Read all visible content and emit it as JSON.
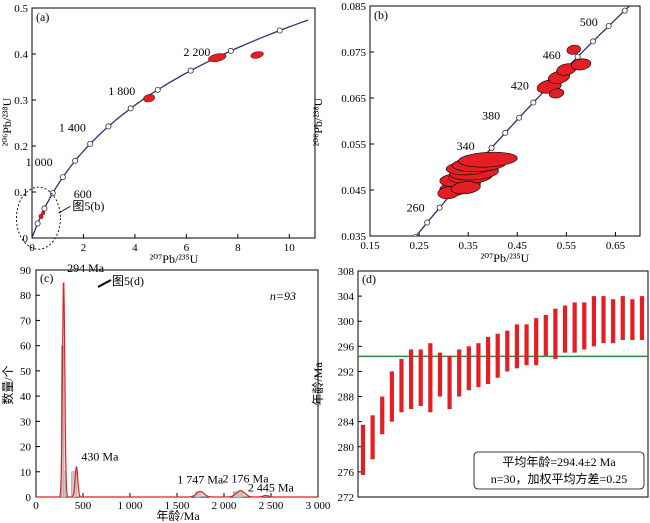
{
  "colors": {
    "curve": "#2b2f73",
    "ellipse": "#e31e24",
    "ellipse_stroke": "#7a0d10",
    "hist_fill": "#c8c8c8",
    "hist_line": "#e31e24",
    "mean_line": "#2e8b3e",
    "bar": "#e31e24"
  },
  "chart_data": [
    {
      "type": "scatter",
      "panel": "(a)",
      "xlabel": "²⁰⁷Pb/²³⁵U",
      "ylabel": "²⁰⁶Pb/²³⁸U",
      "xlim": [
        0,
        11
      ],
      "ylim": [
        0,
        0.5
      ],
      "xticks": [
        "0",
        "2",
        "4",
        "6",
        "8",
        "10"
      ],
      "yticks": [
        "0",
        "0.1",
        "0.2",
        "0.3",
        "0.4",
        "0.5"
      ],
      "concordia_ages": [
        "600",
        "1 000",
        "1 400",
        "1 800",
        "2 200"
      ],
      "concordia_label_pos": [
        [
          600,
          30
        ],
        [
          1000,
          -36
        ],
        [
          1400,
          -36
        ],
        [
          1800,
          -36
        ],
        [
          2200,
          -34
        ]
      ],
      "inset_label": "图5(b)",
      "points": [
        {
          "x": 0.35,
          "y": 0.047,
          "rx": 0.08,
          "ry": 0.005
        },
        {
          "x": 0.44,
          "y": 0.055,
          "rx": 0.06,
          "ry": 0.004
        },
        {
          "x": 4.55,
          "y": 0.304,
          "rx": 0.22,
          "ry": 0.008
        },
        {
          "x": 7.2,
          "y": 0.392,
          "rx": 0.35,
          "ry": 0.008
        },
        {
          "x": 8.75,
          "y": 0.398,
          "rx": 0.25,
          "ry": 0.007
        }
      ]
    },
    {
      "type": "scatter",
      "panel": "(b)",
      "xlabel": "²⁰⁷Pb/²³⁵U",
      "ylabel": "²⁰⁶Pb/²³⁸U",
      "xlim": [
        0.15,
        0.7
      ],
      "ylim": [
        0.035,
        0.085
      ],
      "xticks": [
        "0.15",
        "0.25",
        "0.35",
        "0.45",
        "0.55",
        "0.65"
      ],
      "yticks": [
        "0.035",
        "0.045",
        "0.055",
        "0.065",
        "0.075",
        "0.085"
      ],
      "concordia_ages": [
        "260",
        "340",
        "380",
        "420",
        "460",
        "500"
      ],
      "points": [
        {
          "x": 0.32,
          "y": 0.0452,
          "rx": 0.028,
          "ry": 0.0015,
          "rot": -5
        },
        {
          "x": 0.34,
          "y": 0.0462,
          "rx": 0.035,
          "ry": 0.0016,
          "rot": -5
        },
        {
          "x": 0.33,
          "y": 0.0472,
          "rx": 0.038,
          "ry": 0.0015,
          "rot": -4
        },
        {
          "x": 0.355,
          "y": 0.048,
          "rx": 0.045,
          "ry": 0.0016,
          "rot": -4
        },
        {
          "x": 0.362,
          "y": 0.0488,
          "rx": 0.05,
          "ry": 0.0016,
          "rot": -4
        },
        {
          "x": 0.35,
          "y": 0.0498,
          "rx": 0.045,
          "ry": 0.0015,
          "rot": -3
        },
        {
          "x": 0.372,
          "y": 0.0506,
          "rx": 0.055,
          "ry": 0.0016,
          "rot": -3
        },
        {
          "x": 0.39,
          "y": 0.0516,
          "rx": 0.06,
          "ry": 0.0016,
          "rot": -3
        },
        {
          "x": 0.31,
          "y": 0.0444,
          "rx": 0.022,
          "ry": 0.0013,
          "rot": -6
        },
        {
          "x": 0.345,
          "y": 0.0455,
          "rx": 0.03,
          "ry": 0.0013,
          "rot": -6
        },
        {
          "x": 0.515,
          "y": 0.0675,
          "rx": 0.025,
          "ry": 0.0014,
          "rot": -12
        },
        {
          "x": 0.53,
          "y": 0.066,
          "rx": 0.015,
          "ry": 0.001,
          "rot": -10
        },
        {
          "x": 0.535,
          "y": 0.0695,
          "rx": 0.022,
          "ry": 0.0013,
          "rot": -12
        },
        {
          "x": 0.55,
          "y": 0.0712,
          "rx": 0.02,
          "ry": 0.0012,
          "rot": -12
        },
        {
          "x": 0.58,
          "y": 0.0723,
          "rx": 0.02,
          "ry": 0.0012,
          "rot": -8
        },
        {
          "x": 0.565,
          "y": 0.0755,
          "rx": 0.014,
          "ry": 0.001,
          "rot": -10
        }
      ]
    },
    {
      "type": "area",
      "panel": "(c)",
      "xlabel": "年龄/Ma",
      "ylabel": "数量/个",
      "xlim": [
        0,
        3000
      ],
      "ylim": [
        0,
        90
      ],
      "xticks": [
        "0",
        "500",
        "1 000",
        "1 500",
        "2 000",
        "2 500",
        "3 000"
      ],
      "yticks": [
        "0",
        "10",
        "20",
        "30",
        "40",
        "50",
        "60",
        "70",
        "80",
        "90"
      ],
      "n_label": "n=93",
      "inset_label": "图5(d)",
      "peaks": [
        {
          "label": "294 Ma",
          "age": 294,
          "height": 86,
          "width": 12
        },
        {
          "label": "430 Ma",
          "age": 430,
          "height": 12,
          "width": 14
        },
        {
          "label": "1 747 Ma",
          "age": 1747,
          "height": 2.2,
          "width": 40
        },
        {
          "label": "2 176 Ma",
          "age": 2176,
          "height": 2.5,
          "width": 45
        },
        {
          "label": "2 445 Ma",
          "age": 2445,
          "height": 0.6,
          "width": 30
        }
      ],
      "bars": [
        {
          "x": 270,
          "w": 25,
          "h": 60
        },
        {
          "x": 295,
          "w": 20,
          "h": 10
        },
        {
          "x": 380,
          "w": 50,
          "h": 10
        },
        {
          "x": 1700,
          "w": 50,
          "h": 2
        },
        {
          "x": 2100,
          "w": 50,
          "h": 2
        },
        {
          "x": 2150,
          "w": 50,
          "h": 2
        }
      ]
    },
    {
      "type": "bar",
      "panel": "(d)",
      "ylabel": "年龄/Ma",
      "ylim": [
        272,
        308
      ],
      "yticks": [
        "272",
        "276",
        "280",
        "284",
        "288",
        "292",
        "296",
        "300",
        "304",
        "308"
      ],
      "mean": 294.4,
      "annotation": [
        "平均年龄=294.4±2 Ma",
        "n=30，加权平均方差=0.25"
      ],
      "intervals": [
        [
          275.5,
          283.5
        ],
        [
          278,
          285
        ],
        [
          282,
          288
        ],
        [
          284,
          292
        ],
        [
          285.5,
          294
        ],
        [
          286,
          295.5
        ],
        [
          286.5,
          295.5
        ],
        [
          285.5,
          296.5
        ],
        [
          288,
          295
        ],
        [
          286,
          294.5
        ],
        [
          288,
          295.5
        ],
        [
          289,
          296
        ],
        [
          289.5,
          296.5
        ],
        [
          290,
          297.5
        ],
        [
          291,
          298
        ],
        [
          292,
          298.5
        ],
        [
          292.5,
          299.5
        ],
        [
          293,
          299.5
        ],
        [
          293,
          300.5
        ],
        [
          294.5,
          301
        ],
        [
          294,
          302
        ],
        [
          295,
          302.5
        ],
        [
          295,
          303
        ],
        [
          295.5,
          303
        ],
        [
          296,
          304
        ],
        [
          296.5,
          304
        ],
        [
          296.5,
          303.5
        ],
        [
          297,
          304
        ],
        [
          297,
          303.5
        ],
        [
          297,
          304
        ]
      ]
    }
  ]
}
